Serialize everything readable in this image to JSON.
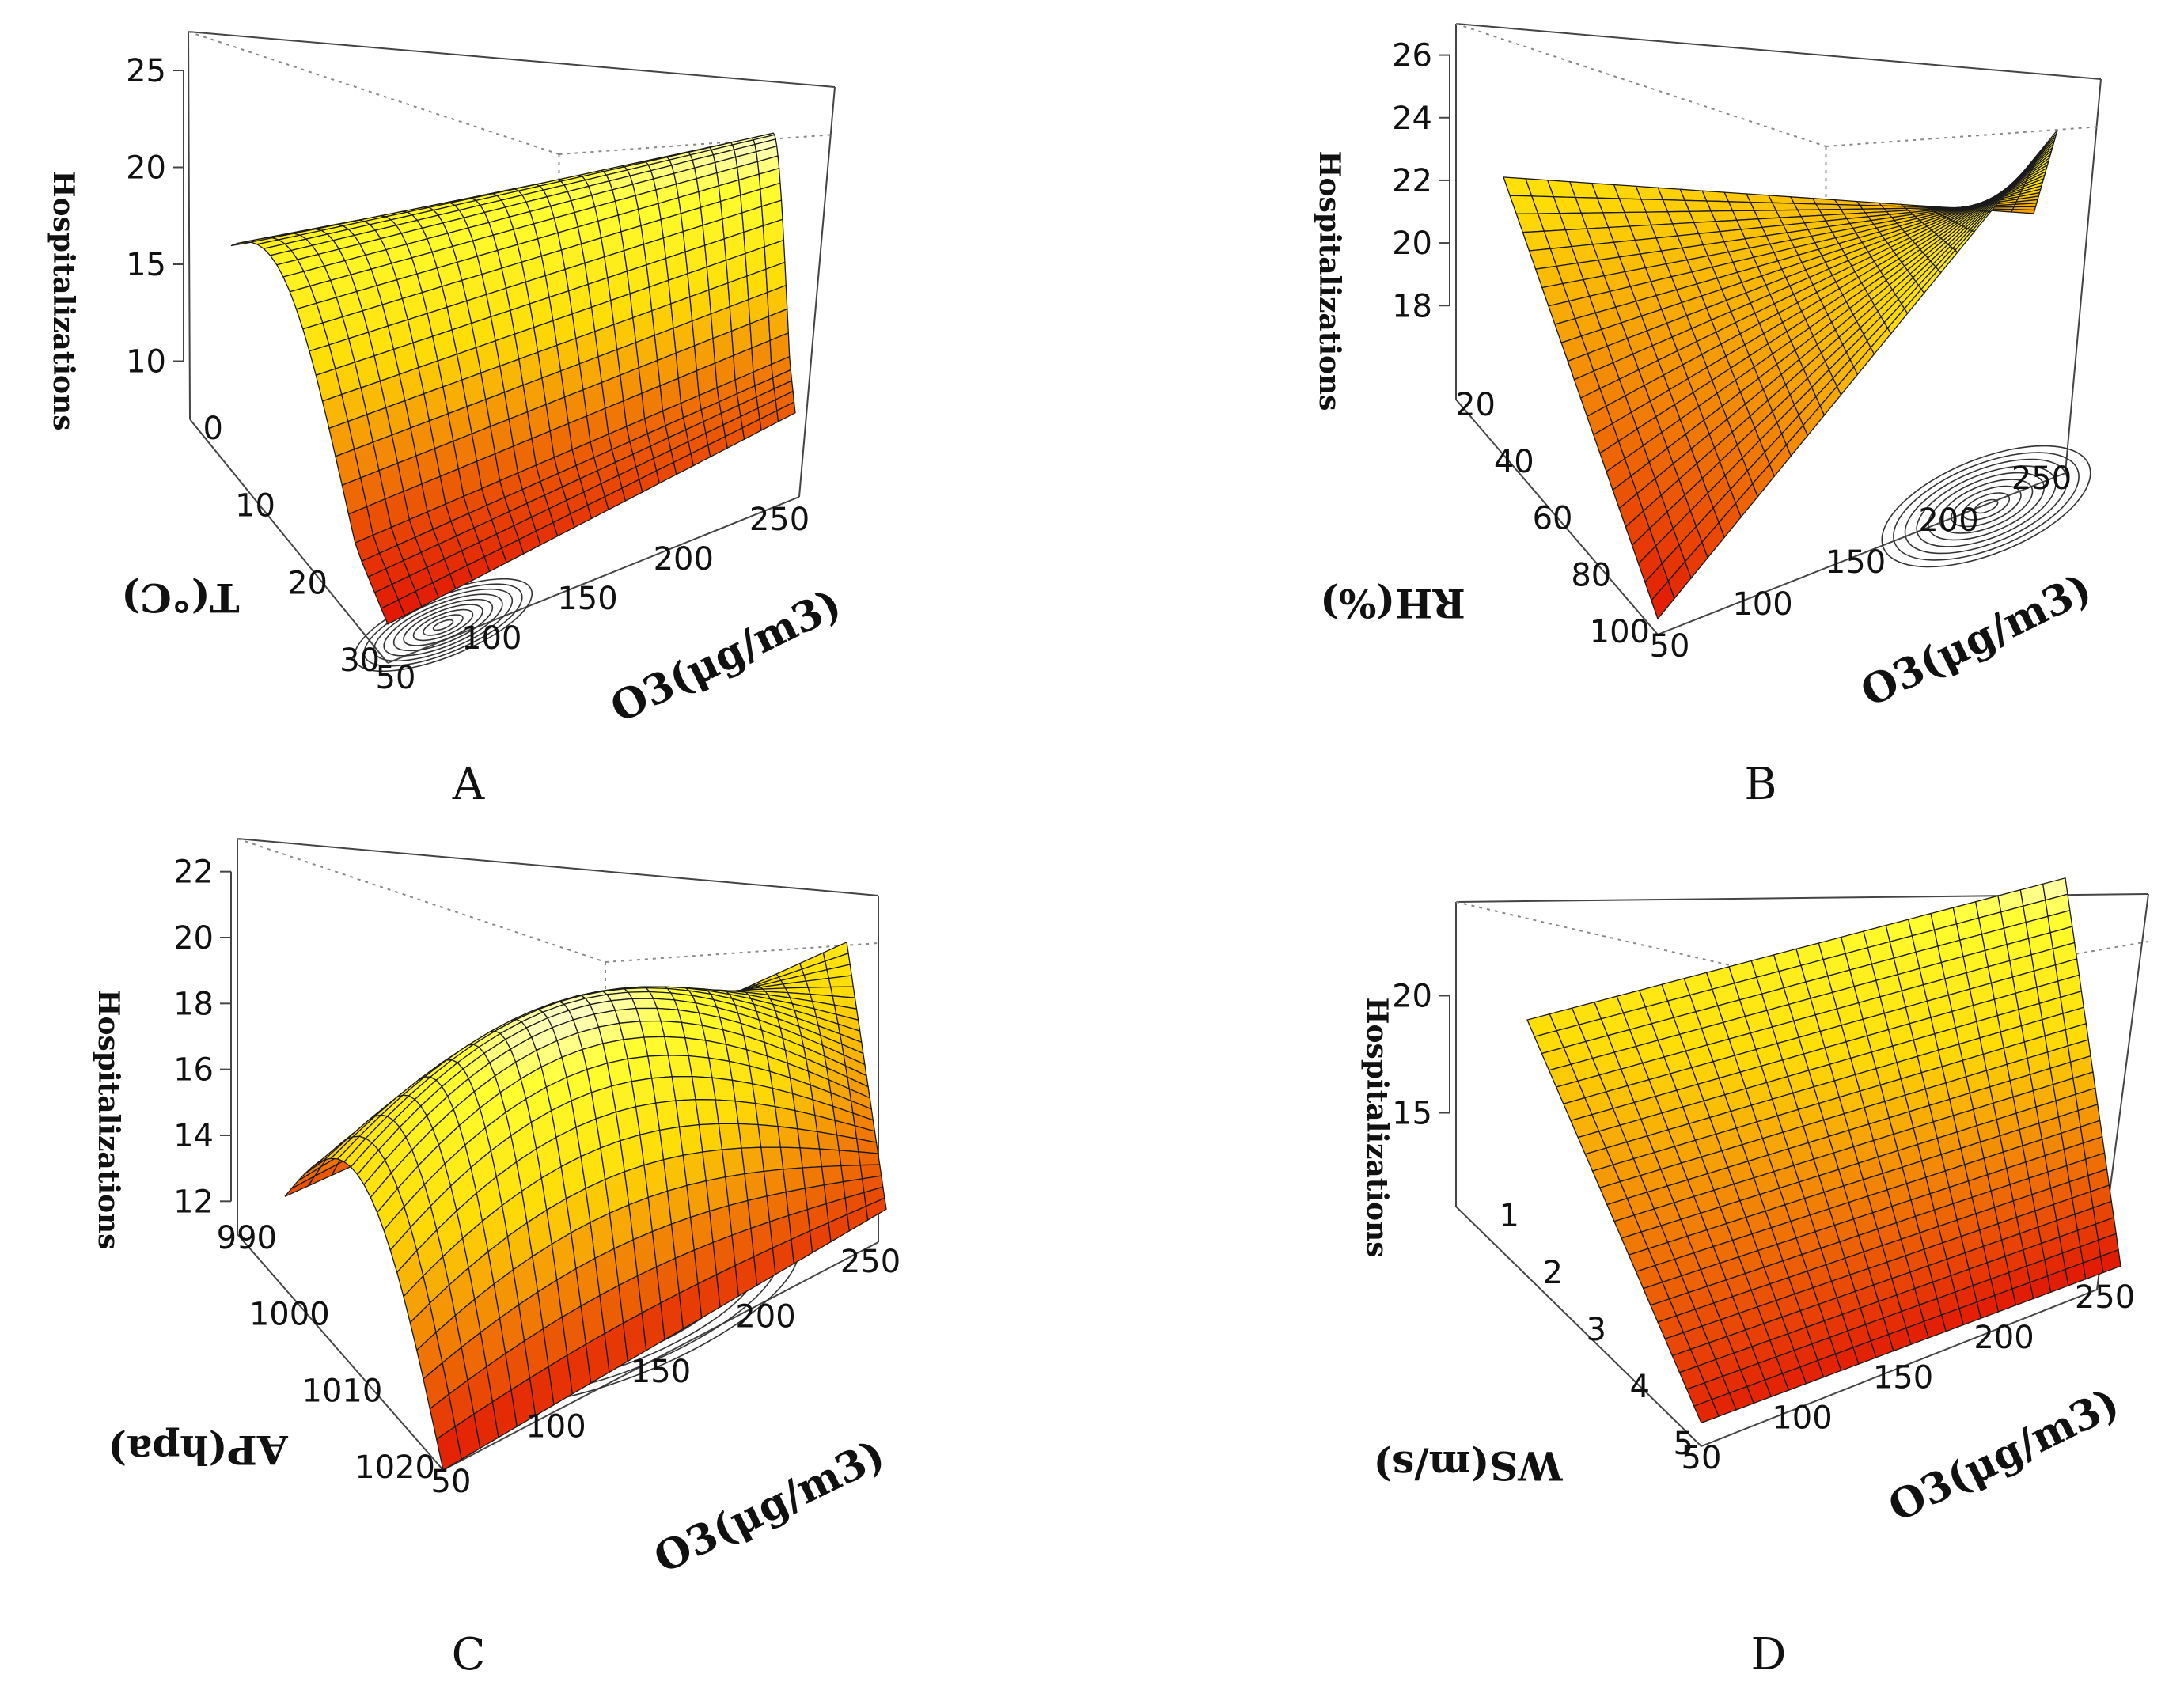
{
  "chart_data": [
    {
      "panel": "A",
      "type": "surface3d",
      "zlabel": "Hospitalizations",
      "ylabel": "T(°C)",
      "xlabel": "O3(μg/m3)",
      "xticks": [
        50,
        100,
        150,
        200,
        250
      ],
      "yticks": [
        0,
        10,
        20,
        30
      ],
      "zticks": [
        10,
        15,
        20,
        25
      ],
      "corners": {
        "x_min_y_min": 16.0,
        "x_max_y_min": 18.5,
        "x_min_y_max": 9.0,
        "x_max_y_max": 11.5
      },
      "ridge": 24.5,
      "contours": true,
      "grid": true
    },
    {
      "panel": "B",
      "type": "surface3d",
      "zlabel": "Hospitalizations",
      "ylabel": "RH(%)",
      "xlabel": "O3(μg/m3)",
      "xticks": [
        50,
        100,
        150,
        200,
        250
      ],
      "yticks": [
        20,
        40,
        60,
        80,
        100
      ],
      "zticks": [
        18,
        20,
        22,
        24,
        26
      ],
      "corners": {
        "x_min_y_min": 22.0,
        "x_max_y_min": 19.5,
        "x_min_y_max": 15.5,
        "x_max_y_max": 25.5
      },
      "contours": true,
      "grid": true
    },
    {
      "panel": "C",
      "type": "surface3d",
      "zlabel": "Hospitalizations",
      "ylabel": "AP(hpa)",
      "xlabel": "O3(μg/m3)",
      "xticks": [
        50,
        100,
        150,
        200,
        250
      ],
      "yticks": [
        990,
        1000,
        1010,
        1020
      ],
      "zticks": [
        12,
        14,
        16,
        18,
        20,
        22
      ],
      "corners": {
        "x_min_y_min": 12.0,
        "x_max_y_min": 16.5,
        "x_min_y_max": 11.0,
        "x_max_y_max": 12.0
      },
      "peak": 22.5,
      "contours": true,
      "grid": true
    },
    {
      "panel": "D",
      "type": "surface3d",
      "zlabel": "Hospitalizations",
      "ylabel": "WS(m/s)",
      "xlabel": "O3(μg/m3)",
      "xticks": [
        50,
        100,
        150,
        200,
        250
      ],
      "yticks": [
        1,
        2,
        3,
        4,
        5
      ],
      "zticks": [
        15,
        20
      ],
      "corners": {
        "x_min_y_min": 19.0,
        "x_max_y_min": 23.5,
        "x_min_y_max": 12.0,
        "x_max_y_max": 11.5
      },
      "contours": true,
      "grid": true
    }
  ],
  "panels": [
    "A",
    "B",
    "C",
    "D"
  ]
}
